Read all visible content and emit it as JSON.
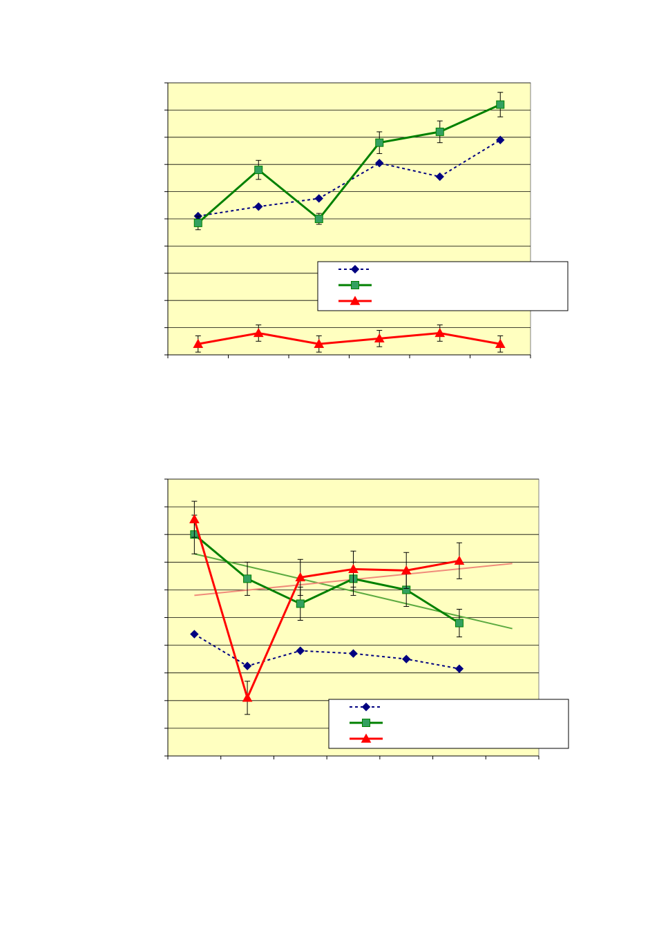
{
  "colors": {
    "plot_background": "#FFFFC0",
    "gridline": "#000000",
    "series_blue": "#000080",
    "series_green": "#008000",
    "marker_green": "#33A060",
    "series_red": "#FF0000",
    "trend_green": "#5CAA40",
    "trend_red": "#F08A7A"
  },
  "chart_data": [
    {
      "type": "line",
      "title": "",
      "xlabel": "",
      "ylabel": "",
      "x": [
        1,
        2,
        3,
        4,
        5,
        6
      ],
      "xlim": [
        0.5,
        6.5
      ],
      "ylim": [
        0,
        10
      ],
      "y_ticks": [
        0,
        1,
        2,
        3,
        4,
        5,
        6,
        7,
        8,
        9,
        10
      ],
      "x_tick_boundaries": [
        0.5,
        1.5,
        2.5,
        3.5,
        4.5,
        5.5,
        6.5
      ],
      "grid": true,
      "legend_position": "lower-right",
      "series": [
        {
          "color_key": "series_blue",
          "marker": "diamond",
          "dash": true,
          "values": [
            5.1,
            5.45,
            5.75,
            7.05,
            6.55,
            7.9
          ]
        },
        {
          "color_key": "series_green",
          "marker": "square",
          "dash": false,
          "values": [
            4.85,
            6.8,
            5.0,
            7.8,
            8.2,
            9.2
          ],
          "errors": [
            0.25,
            0.35,
            0.2,
            0.4,
            0.4,
            0.45
          ]
        },
        {
          "color_key": "series_red",
          "marker": "triangle",
          "dash": false,
          "values": [
            0.4,
            0.8,
            0.4,
            0.6,
            0.8,
            0.4
          ],
          "errors": [
            0.3,
            0.3,
            0.3,
            0.3,
            0.3,
            0.3
          ]
        }
      ]
    },
    {
      "type": "line",
      "title": "",
      "xlabel": "",
      "ylabel": "",
      "x": [
        1,
        2,
        3,
        4,
        5,
        6
      ],
      "xlim": [
        0.5,
        7.5
      ],
      "ylim": [
        0,
        10
      ],
      "y_ticks": [
        0,
        1,
        2,
        3,
        4,
        5,
        6,
        7,
        8,
        9,
        10
      ],
      "x_tick_boundaries": [
        0.5,
        1.5,
        2.5,
        3.5,
        4.5,
        5.5,
        6.5,
        7.5
      ],
      "grid": true,
      "legend_position": "lower-right",
      "series": [
        {
          "color_key": "series_blue",
          "marker": "diamond",
          "dash": true,
          "values": [
            4.4,
            3.25,
            3.8,
            3.7,
            3.5,
            3.15
          ]
        },
        {
          "color_key": "series_green",
          "marker": "square",
          "dash": false,
          "values": [
            8.0,
            6.4,
            5.5,
            6.4,
            6.0,
            4.8
          ],
          "errors": [
            0.7,
            0.6,
            0.6,
            0.6,
            0.6,
            0.5
          ],
          "trendline": {
            "color_key": "trend_green",
            "x": [
              1,
              7
            ],
            "y": [
              7.3,
              4.6
            ]
          }
        },
        {
          "color_key": "series_red",
          "marker": "triangle",
          "dash": false,
          "values": [
            8.55,
            2.1,
            6.45,
            6.75,
            6.7,
            7.05
          ],
          "errors": [
            0.65,
            0.6,
            0.65,
            0.65,
            0.65,
            0.65
          ],
          "trendline": {
            "color_key": "trend_red",
            "x": [
              1,
              7
            ],
            "y": [
              5.8,
              6.95
            ]
          }
        }
      ]
    }
  ]
}
